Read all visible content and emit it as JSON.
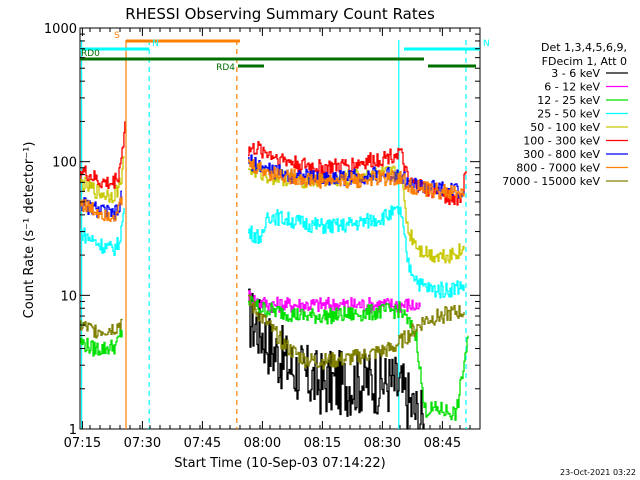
{
  "chart_data": {
    "type": "line",
    "title": "RHESSI Observing Summary Count Rates",
    "xlabel": "Start Time (10-Sep-03 07:14:22)",
    "ylabel": "Count Rate (s⁻¹ detector⁻¹)",
    "y_scale": "log",
    "ylim": [
      1,
      1000
    ],
    "xlim_minutes": [
      0,
      100
    ],
    "x_ticks": [
      {
        "m": 0.6,
        "label": "07:15"
      },
      {
        "m": 15.6,
        "label": "07:30"
      },
      {
        "m": 30.6,
        "label": "07:45"
      },
      {
        "m": 45.6,
        "label": "08:00"
      },
      {
        "m": 60.6,
        "label": "08:15"
      },
      {
        "m": 75.6,
        "label": "08:30"
      },
      {
        "m": 90.6,
        "label": "08:45"
      }
    ],
    "y_ticks": [
      {
        "v": 1,
        "label": "1"
      },
      {
        "v": 10,
        "label": "10"
      },
      {
        "v": 100,
        "label": "100"
      },
      {
        "v": 1000,
        "label": "1000"
      }
    ],
    "timestamp": "23-Oct-2021 03:22",
    "legend": {
      "header": [
        "Det 1,3,4,5,6,9,",
        "FDecim 1, Att 0"
      ],
      "entries": [
        {
          "label": "3 - 6 keV",
          "color": "#000000"
        },
        {
          "label": "6 - 12 keV",
          "color": "#ff00ff"
        },
        {
          "label": "12 - 25 keV",
          "color": "#00e000"
        },
        {
          "label": "25 - 50 keV",
          "color": "#00ffff"
        },
        {
          "label": "50 - 100 keV",
          "color": "#c8c800"
        },
        {
          "label": "100 - 300 keV",
          "color": "#ff0000"
        },
        {
          "label": "300 - 800 keV",
          "color": "#0000ff"
        },
        {
          "label": "800 - 7000 keV",
          "color": "#ff8000"
        },
        {
          "label": "7000 - 15000 keV",
          "color": "#808000"
        }
      ]
    },
    "flags": [
      {
        "label": "S",
        "color": "#ff8000",
        "start": 11.5,
        "end": 40,
        "level": 0
      },
      {
        "label": "N",
        "color": "#00ffff",
        "start": 0,
        "end": 17.3,
        "level": 1
      },
      {
        "label": "N",
        "color": "#00ffff",
        "start": 81,
        "end": 100,
        "level": 1
      },
      {
        "label": "RD0",
        "color": "#007000",
        "start": 0,
        "end": 86,
        "level": 2
      },
      {
        "label": "RD4",
        "color": "#007000",
        "start": 39.5,
        "end": 46,
        "level": 3
      },
      {
        "label": "",
        "color": "#007000",
        "start": 87,
        "end": 99,
        "level": 3
      }
    ],
    "vlines": [
      {
        "m": 0.4,
        "color": "#00ffff",
        "style": "solid"
      },
      {
        "m": 11.5,
        "color": "#ff8000",
        "style": "solid"
      },
      {
        "m": 17.3,
        "color": "#00ffff",
        "style": "dashed"
      },
      {
        "m": 39.2,
        "color": "#ff8000",
        "style": "dashed"
      },
      {
        "m": 79.7,
        "color": "#00ffff",
        "style": "solid"
      },
      {
        "m": 96.5,
        "color": "#00ffff",
        "style": "dashed"
      }
    ],
    "series": [
      {
        "name": "3 - 6 keV",
        "color": "#000000",
        "noise": 0.25,
        "segments": [
          [
            [
              42,
              7
            ],
            [
              45,
              5.5
            ],
            [
              48,
              4
            ],
            [
              52,
              3
            ],
            [
              56,
              2.5
            ],
            [
              60,
              2.2
            ],
            [
              66,
              2.2
            ],
            [
              72,
              2.3
            ],
            [
              78,
              2.2
            ],
            [
              80,
              2
            ],
            [
              84,
              1.3
            ],
            [
              86,
              1.1
            ]
          ]
        ]
      },
      {
        "name": "6 - 12 keV",
        "color": "#ff00ff",
        "segments": [
          [
            [
              42,
              10
            ],
            [
              44,
              9
            ],
            [
              48,
              8.5
            ],
            [
              54,
              8.5
            ],
            [
              60,
              8.5
            ],
            [
              66,
              8.5
            ],
            [
              72,
              8.5
            ],
            [
              78,
              8.5
            ],
            [
              82,
              8.5
            ],
            [
              85,
              8.2
            ]
          ]
        ]
      },
      {
        "name": "12 - 25 keV",
        "color": "#00e000",
        "segments": [
          [
            [
              0,
              4.5
            ],
            [
              3,
              4
            ],
            [
              6,
              4
            ],
            [
              9,
              4.2
            ],
            [
              10.5,
              5.5
            ]
          ],
          [
            [
              42,
              9
            ],
            [
              45,
              8
            ],
            [
              50,
              7.5
            ],
            [
              56,
              7
            ],
            [
              62,
              7
            ],
            [
              68,
              7.2
            ],
            [
              74,
              7.5
            ],
            [
              80,
              7.8
            ],
            [
              84,
              5
            ],
            [
              86,
              1.4
            ],
            [
              90,
              1.4
            ],
            [
              94,
              1.3
            ],
            [
              97,
              5
            ]
          ]
        ]
      },
      {
        "name": "25 - 50 keV",
        "color": "#00ffff",
        "segments": [
          [
            [
              0,
              30
            ],
            [
              2,
              27
            ],
            [
              5,
              24
            ],
            [
              8,
              22
            ],
            [
              9.5,
              24
            ],
            [
              10.5,
              35
            ],
            [
              11,
              45
            ]
          ],
          [
            [
              42,
              30
            ],
            [
              44,
              28
            ],
            [
              46,
              27
            ],
            [
              46.5,
              40
            ],
            [
              50,
              38
            ],
            [
              55,
              35
            ],
            [
              60,
              33
            ],
            [
              65,
              33
            ],
            [
              70,
              35
            ],
            [
              75,
              38
            ],
            [
              80,
              43
            ],
            [
              82,
              17
            ],
            [
              85,
              12
            ],
            [
              88,
              11
            ],
            [
              92,
              11
            ],
            [
              96,
              12
            ]
          ]
        ]
      },
      {
        "name": "50 - 100 keV",
        "color": "#c8c800",
        "segments": [
          [
            [
              0,
              70
            ],
            [
              2,
              65
            ],
            [
              5,
              58
            ],
            [
              8,
              56
            ],
            [
              9.5,
              62
            ],
            [
              10.5,
              85
            ],
            [
              11,
              110
            ]
          ],
          [
            [
              42,
              90
            ],
            [
              45,
              82
            ],
            [
              47,
              78
            ],
            [
              50,
              76
            ],
            [
              55,
              73
            ],
            [
              60,
              72
            ],
            [
              65,
              74
            ],
            [
              70,
              78
            ],
            [
              75,
              80
            ],
            [
              80,
              83
            ],
            [
              82,
              30
            ],
            [
              85,
              22
            ],
            [
              88,
              20
            ],
            [
              92,
              20
            ],
            [
              96,
              22
            ]
          ]
        ]
      },
      {
        "name": "100 - 300 keV",
        "color": "#ff0000",
        "segments": [
          [
            [
              0,
              85
            ],
            [
              2,
              80
            ],
            [
              5,
              70
            ],
            [
              8,
              68
            ],
            [
              9.5,
              80
            ],
            [
              10.5,
              120
            ],
            [
              11.2,
              200
            ]
          ],
          [
            [
              42,
              120
            ],
            [
              44,
              125
            ],
            [
              46,
              120
            ],
            [
              50,
              105
            ],
            [
              55,
              95
            ],
            [
              60,
              90
            ],
            [
              65,
              92
            ],
            [
              70,
              98
            ],
            [
              75,
              105
            ],
            [
              80,
              118
            ],
            [
              82,
              70
            ],
            [
              85,
              65
            ],
            [
              88,
              60
            ],
            [
              92,
              55
            ],
            [
              95,
              52
            ],
            [
              96.5,
              85
            ]
          ]
        ]
      },
      {
        "name": "300 - 800 keV",
        "color": "#0000ff",
        "segments": [
          [
            [
              0,
              50
            ],
            [
              2,
              46
            ],
            [
              5,
              43
            ],
            [
              8,
              40
            ],
            [
              9.5,
              42
            ],
            [
              10.5,
              60
            ]
          ],
          [
            [
              42,
              100
            ],
            [
              45,
              92
            ],
            [
              48,
              85
            ],
            [
              52,
              80
            ],
            [
              56,
              77
            ],
            [
              60,
              75
            ],
            [
              65,
              76
            ],
            [
              70,
              78
            ],
            [
              75,
              80
            ],
            [
              80,
              80
            ],
            [
              82,
              68
            ],
            [
              86,
              65
            ],
            [
              90,
              62
            ],
            [
              94,
              60
            ],
            [
              96,
              60
            ]
          ]
        ]
      },
      {
        "name": "800 - 7000 keV",
        "color": "#ff8000",
        "segments": [
          [
            [
              0,
              50
            ],
            [
              2,
              45
            ],
            [
              5,
              42
            ],
            [
              8,
              40
            ],
            [
              9.5,
              42
            ],
            [
              10.5,
              55
            ]
          ],
          [
            [
              42,
              95
            ],
            [
              45,
              88
            ],
            [
              48,
              82
            ],
            [
              52,
              78
            ],
            [
              56,
              74
            ],
            [
              60,
              72
            ],
            [
              65,
              72
            ],
            [
              70,
              73
            ],
            [
              75,
              75
            ],
            [
              80,
              76
            ],
            [
              82,
              66
            ],
            [
              86,
              62
            ],
            [
              90,
              60
            ],
            [
              94,
              58
            ],
            [
              96,
              58
            ]
          ]
        ]
      },
      {
        "name": "7000 - 15000 keV",
        "color": "#808000",
        "segments": [
          [
            [
              0,
              6
            ],
            [
              3,
              5.5
            ],
            [
              6,
              5.5
            ],
            [
              9,
              5.8
            ],
            [
              10.5,
              6.5
            ]
          ],
          [
            [
              42,
              9
            ],
            [
              45,
              7
            ],
            [
              48,
              5.5
            ],
            [
              52,
              4
            ],
            [
              56,
              3.3
            ],
            [
              60,
              3.2
            ],
            [
              66,
              3.3
            ],
            [
              72,
              3.6
            ],
            [
              78,
              4
            ],
            [
              82,
              5
            ],
            [
              86,
              6.5
            ],
            [
              90,
              7
            ],
            [
              94,
              7.5
            ],
            [
              96,
              7.5
            ]
          ]
        ]
      }
    ]
  }
}
